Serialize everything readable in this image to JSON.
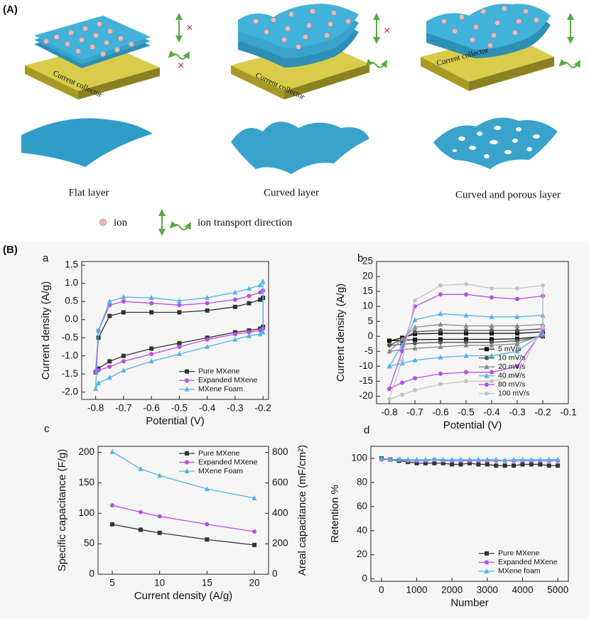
{
  "figure": {
    "label_a": "(A)",
    "label_b": "(B)",
    "schemes": [
      {
        "collector": "Current collector",
        "layer": "Flat layer"
      },
      {
        "collector": "Current collector",
        "layer": "Curved layer"
      },
      {
        "collector": "Current collector",
        "layer": "Curved and porous layer"
      }
    ],
    "legend": {
      "ion": "ion",
      "direction": "ion transport direction"
    }
  },
  "chart_data": [
    {
      "type": "line",
      "title": "a",
      "xlabel": "Potential (V)",
      "ylabel": "Current density (A/g)",
      "x": [
        -0.8,
        -0.79,
        -0.75,
        -0.7,
        -0.6,
        -0.5,
        -0.4,
        -0.3,
        -0.25,
        -0.21,
        -0.2,
        -0.2,
        -0.21,
        -0.25,
        -0.3,
        -0.4,
        -0.5,
        -0.6,
        -0.7,
        -0.75,
        -0.79,
        -0.8
      ],
      "xlim": [
        -0.85,
        -0.18
      ],
      "xticks": [
        -0.8,
        -0.7,
        -0.6,
        -0.5,
        -0.4,
        -0.3,
        -0.2
      ],
      "ylim": [
        -2.2,
        1.6
      ],
      "yticks": [
        {
          "value": -2.0,
          "label": "-2.0"
        },
        -1.5,
        {
          "value": -1.0,
          "label": "-1.0"
        },
        -0.5,
        {
          "value": 0,
          "label": "0.0"
        },
        0.5,
        {
          "value": 1.0,
          "label": "1.0"
        },
        1.5
      ],
      "legend": "lower right",
      "series": [
        {
          "name": "Pure MXene",
          "color": "#333333",
          "marker": "square",
          "values": [
            -1.45,
            -0.5,
            0.1,
            0.2,
            0.2,
            0.2,
            0.25,
            0.35,
            0.45,
            0.55,
            0.6,
            -0.2,
            -0.25,
            -0.3,
            -0.35,
            -0.5,
            -0.65,
            -0.8,
            -1.0,
            -1.15,
            -1.35,
            -1.45
          ]
        },
        {
          "name": "Expanded MXene",
          "color": "#b54ee8",
          "marker": "circle",
          "values": [
            -1.45,
            -0.3,
            0.4,
            0.5,
            0.45,
            0.4,
            0.45,
            0.55,
            0.65,
            0.75,
            0.8,
            -0.25,
            -0.3,
            -0.35,
            -0.4,
            -0.55,
            -0.75,
            -0.95,
            -1.15,
            -1.3,
            -1.4,
            -1.45
          ]
        },
        {
          "name": "MXene Foam",
          "color": "#4fb3ea",
          "marker": "triangle",
          "values": [
            -1.9,
            -0.3,
            0.5,
            0.62,
            0.6,
            0.52,
            0.6,
            0.75,
            0.85,
            0.95,
            1.05,
            -0.35,
            -0.4,
            -0.45,
            -0.55,
            -0.75,
            -0.95,
            -1.15,
            -1.4,
            -1.6,
            -1.75,
            -1.9
          ]
        }
      ]
    },
    {
      "type": "line",
      "title": "b",
      "xlabel": "Potential (V)",
      "ylabel": "Current density (A/g)",
      "x": [
        -0.8,
        -0.75,
        -0.7,
        -0.6,
        -0.5,
        -0.4,
        -0.3,
        -0.2,
        -0.2,
        -0.3,
        -0.4,
        -0.5,
        -0.6,
        -0.7,
        -0.75,
        -0.8
      ],
      "xlim": [
        -0.85,
        -0.1
      ],
      "xticks": [
        -0.8,
        -0.7,
        -0.6,
        -0.5,
        -0.4,
        -0.3,
        -0.2,
        -0.1
      ],
      "ylim": [
        -22.5,
        25
      ],
      "yticks": [
        -20,
        -15,
        -10,
        -5,
        0,
        5,
        10,
        15,
        20,
        25
      ],
      "legend": "lower right",
      "series": [
        {
          "name": "5 mV/s",
          "color": "#111111",
          "marker": "square",
          "values": [
            -1.5,
            -0.5,
            0.8,
            1,
            1,
            1,
            1,
            1.5,
            0,
            -0.8,
            -1,
            -1,
            -1,
            -1.1,
            -1.3,
            -1.5
          ]
        },
        {
          "name": "10 mV/s",
          "color": "#555555",
          "marker": "circle",
          "values": [
            -3,
            -1,
            1.5,
            2,
            2,
            2,
            2,
            2.5,
            0,
            -1.5,
            -2,
            -2,
            -2,
            -2.3,
            -2.7,
            -3
          ]
        },
        {
          "name": "20 mV/s",
          "color": "#888888",
          "marker": "triangle",
          "values": [
            -5,
            -1,
            3,
            4,
            3.5,
            3.5,
            3.5,
            4,
            0.5,
            -2.5,
            -3,
            -3,
            -3.5,
            -4,
            -4.5,
            -5
          ]
        },
        {
          "name": "40 mV/s",
          "color": "#4fb3ea",
          "marker": "triangle",
          "values": [
            -10,
            -3,
            5.5,
            7.5,
            7,
            6.5,
            6.5,
            7,
            1,
            -5,
            -6.5,
            -6.5,
            -7,
            -8,
            -9,
            -10
          ]
        },
        {
          "name": "80 mV/s",
          "color": "#b54ee8",
          "marker": "circle",
          "values": [
            -17.5,
            -5,
            10,
            14,
            14,
            13,
            12.5,
            13.5,
            2,
            -10,
            -12,
            -12,
            -12.5,
            -14,
            -15.5,
            -17.5
          ]
        },
        {
          "name": "100 mV/s",
          "color": "#c4c4c4",
          "marker": "circle",
          "values": [
            -21,
            -8,
            12,
            17,
            17.5,
            16,
            16,
            17,
            3,
            -13,
            -15,
            -15,
            -16,
            -18,
            -19.5,
            -21
          ]
        }
      ]
    },
    {
      "type": "line",
      "title": "c",
      "xlabel": "Current density (A/g)",
      "ylabel": "Specific capacitance (F/g)",
      "y2label": "Areal capacitance (mF/cm²)",
      "x": [
        5,
        8,
        10,
        15,
        20
      ],
      "xlim": [
        3.5,
        21.5
      ],
      "xticks": [
        5,
        10,
        15,
        20
      ],
      "ylim": [
        0,
        210
      ],
      "yticks": [
        0,
        50,
        100,
        150,
        200
      ],
      "y2lim": [
        0,
        840
      ],
      "y2ticks": [
        0,
        200,
        400,
        600,
        800
      ],
      "legend": "upper right",
      "series": [
        {
          "name": "Pure MXene",
          "color": "#333333",
          "marker": "square",
          "values": [
            82,
            73,
            68,
            57,
            48
          ]
        },
        {
          "name": "Expanded MXene",
          "color": "#b54ee8",
          "marker": "circle",
          "values": [
            113,
            102,
            95,
            82,
            70
          ]
        },
        {
          "name": "MXene Foam",
          "color": "#4fb3ea",
          "marker": "triangle",
          "values": [
            201,
            173,
            162,
            140,
            125
          ]
        }
      ]
    },
    {
      "type": "line",
      "title": "d",
      "xlabel": "Number",
      "ylabel": "Retention %",
      "x": [
        0,
        250,
        500,
        750,
        1000,
        1250,
        1500,
        1750,
        2000,
        2250,
        2500,
        2750,
        3000,
        3250,
        3500,
        3750,
        4000,
        4250,
        4500,
        4750,
        5000
      ],
      "xlim": [
        -300,
        5300
      ],
      "xticks": [
        0,
        1000,
        2000,
        3000,
        4000,
        5000
      ],
      "ylim": [
        -2,
        110
      ],
      "yticks": [
        0,
        20,
        40,
        60,
        80,
        100
      ],
      "legend": "lower right",
      "series": [
        {
          "name": "Pure MXene",
          "color": "#333333",
          "marker": "square",
          "values": [
            100,
            99,
            98,
            97,
            96,
            96,
            96,
            96,
            95,
            95,
            96,
            95,
            95,
            94,
            94,
            94,
            95,
            95,
            95,
            94,
            94
          ]
        },
        {
          "name": "Expanded MXene",
          "color": "#b54ee8",
          "marker": "circle",
          "values": [
            99,
            99,
            99,
            98,
            98,
            98,
            99,
            98,
            98,
            98,
            98,
            98,
            98,
            98,
            98,
            98,
            98,
            98,
            98,
            98,
            98
          ]
        },
        {
          "name": "MXene foam",
          "color": "#4fb3ea",
          "marker": "triangle",
          "values": [
            100,
            99,
            99,
            99,
            99,
            99,
            99,
            99,
            99,
            99,
            99,
            99,
            99,
            99,
            98,
            99,
            99,
            99,
            99,
            99,
            99
          ]
        }
      ]
    }
  ]
}
